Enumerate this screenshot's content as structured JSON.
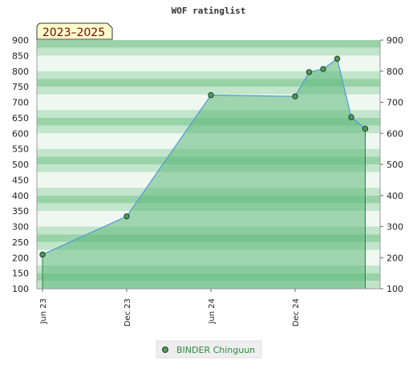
{
  "chart_data": {
    "type": "area",
    "title": "WOF ratinglist",
    "period_label": "2023–2025",
    "xlabel": "",
    "ylabel": "",
    "ylim": [
      100,
      900
    ],
    "y_ticks": [
      100,
      150,
      200,
      250,
      300,
      350,
      400,
      450,
      500,
      550,
      600,
      650,
      700,
      750,
      800,
      850,
      900
    ],
    "x_range": [
      "2023-06",
      "2025-06"
    ],
    "x_ticks": [
      {
        "label": "Jun 23",
        "month": "2023-06"
      },
      {
        "label": "Dec 23",
        "month": "2023-12"
      },
      {
        "label": "Jun 24",
        "month": "2024-06"
      },
      {
        "label": "Dec 24",
        "month": "2024-12"
      }
    ],
    "grid": true,
    "legend_position": "bottom-center",
    "series": [
      {
        "name": "BINDER Chinguun",
        "points": [
          {
            "month": "2023-06",
            "value": 210
          },
          {
            "month": "2023-12",
            "value": 333
          },
          {
            "month": "2024-06",
            "value": 723
          },
          {
            "month": "2024-12",
            "value": 719
          },
          {
            "month": "2025-01",
            "value": 797
          },
          {
            "month": "2025-02",
            "value": 807
          },
          {
            "month": "2025-03",
            "value": 840
          },
          {
            "month": "2025-04",
            "value": 652
          },
          {
            "month": "2025-05",
            "value": 615
          }
        ]
      }
    ],
    "colors": {
      "area_fill": "#5cb87a",
      "line": "#5b9bd5",
      "marker_fill": "#4f9a5a",
      "marker_stroke": "#1f3d22",
      "band_light": "#eef8f0",
      "band_mid": "#c2e5cb",
      "band_dark": "#98d3a8",
      "badge_bg": "#ffffcc",
      "legend_bg": "#eeeeee"
    }
  }
}
